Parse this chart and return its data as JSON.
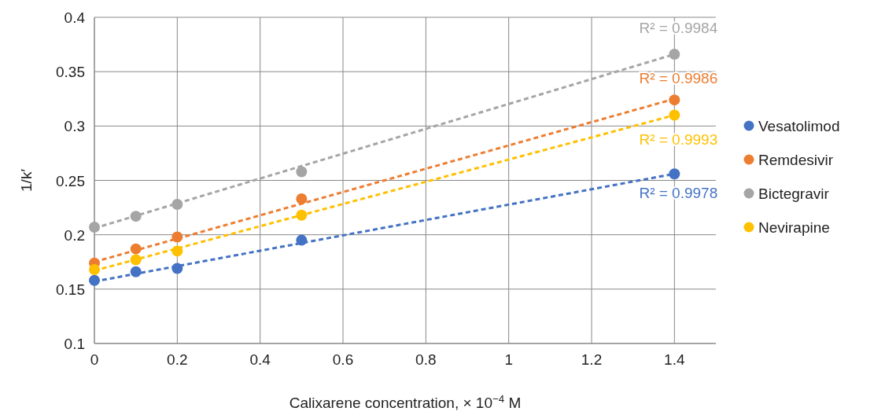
{
  "chart_data": {
    "type": "scatter",
    "xlabel": "Calixarene concentration, × 10$^{−4}$ M",
    "ylabel": "1/k′",
    "xlim": [
      0,
      1.5
    ],
    "xticks": [
      0,
      0.2,
      0.4,
      0.6,
      0.8,
      1,
      1.2,
      1.4
    ],
    "ylim": [
      0.1,
      0.4
    ],
    "yticks": [
      0.1,
      0.15,
      0.2,
      0.25,
      0.3,
      0.35,
      0.4
    ],
    "grid": true,
    "legend": "right",
    "marker": "circle",
    "series": [
      {
        "name": "Vesatolimod",
        "color": "#4472c4",
        "x": [
          0,
          0.1,
          0.2,
          0.5,
          1.4
        ],
        "values": [
          0.158,
          0.166,
          0.169,
          0.195,
          0.256
        ]
      },
      {
        "name": "Remdesivir",
        "color": "#ed7d31",
        "x": [
          0,
          0.1,
          0.2,
          0.5,
          1.4
        ],
        "values": [
          0.174,
          0.187,
          0.198,
          0.233,
          0.324
        ]
      },
      {
        "name": "Bictegravir",
        "color": "#a5a5a5",
        "x": [
          0,
          0.1,
          0.2,
          0.5,
          1.4
        ],
        "values": [
          0.207,
          0.217,
          0.228,
          0.258,
          0.366
        ]
      },
      {
        "name": "Nevirapine",
        "color": "#ffc000",
        "x": [
          0,
          0.1,
          0.2,
          0.5,
          1.4
        ],
        "values": [
          0.168,
          0.177,
          0.185,
          0.218,
          0.31
        ]
      },
      {
        "type": "line",
        "line_style": "dashed",
        "marker": "none",
        "color": "#4472c4",
        "x": [
          0,
          1.4
        ],
        "values": [
          0.157,
          0.256
        ]
      },
      {
        "type": "line",
        "line_style": "dashed",
        "marker": "none",
        "color": "#ed7d31",
        "x": [
          0,
          1.4
        ],
        "values": [
          0.175,
          0.325
        ]
      },
      {
        "type": "line",
        "line_style": "dashed",
        "marker": "none",
        "color": "#a5a5a5",
        "x": [
          0,
          1.4
        ],
        "values": [
          0.206,
          0.366
        ]
      },
      {
        "type": "line",
        "line_style": "dashed",
        "marker": "none",
        "color": "#ffc000",
        "x": [
          0,
          1.4
        ],
        "values": [
          0.167,
          0.31
        ]
      }
    ],
    "annotations": [
      "R² = 0.9978",
      "R² = 0.9986",
      "R² = 0.9984",
      "R² = 0.9993"
    ]
  }
}
